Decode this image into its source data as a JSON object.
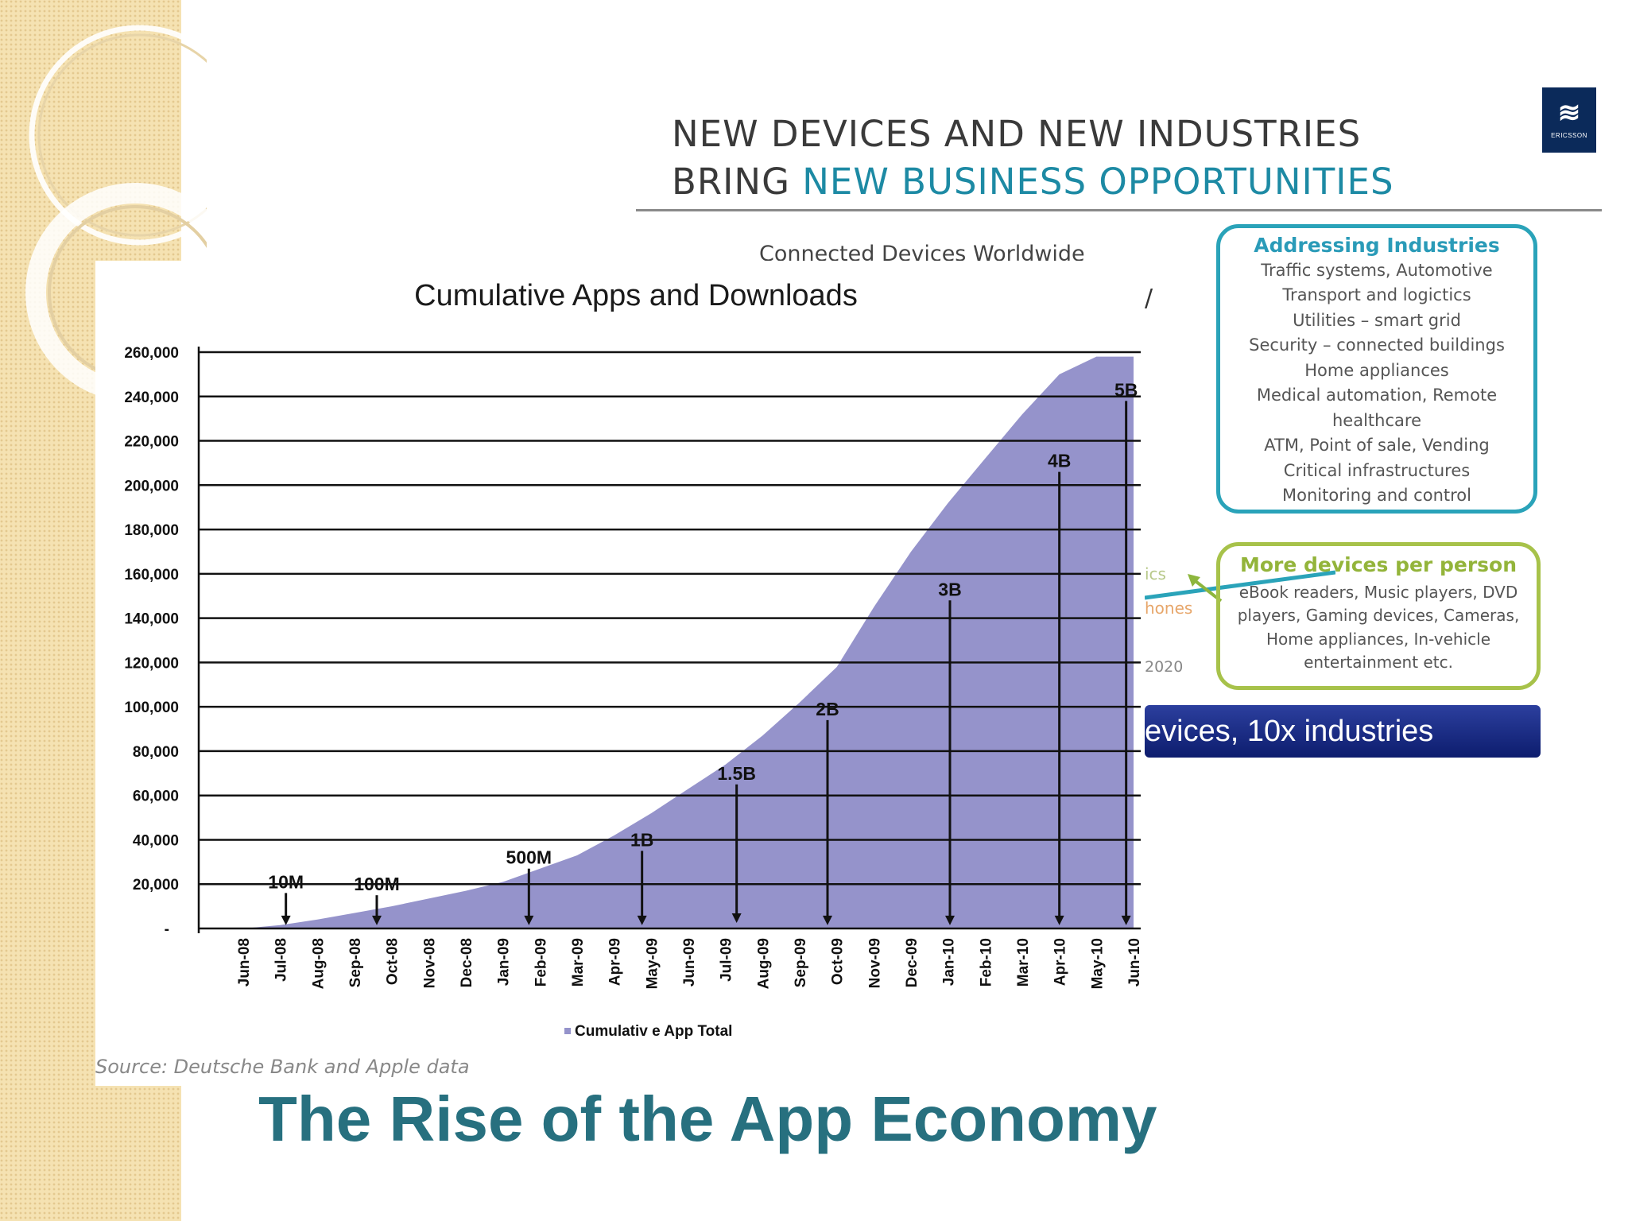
{
  "slide": {
    "title": "The Rise of the App Economy",
    "source": "Source: Deutsche Bank and Apple data"
  },
  "ericsson_slide": {
    "heading_line1": "NEW DEVICES AND NEW INDUSTRIES",
    "heading_line2_prefix": "BRING ",
    "heading_line2_highlight": "NEW BUSINESS OPPORTUNITIES",
    "subtitle": "Connected Devices Worldwide",
    "logo_text": "ERICSSON",
    "industries_box": {
      "title": "Addressing Industries",
      "lines": [
        "Traffic systems, Automotive",
        "Transport and logictics",
        "Utilities – smart grid",
        "Security – connected buildings",
        "Home appliances",
        "Medical automation, Remote",
        "healthcare",
        "ATM, Point of sale, Vending",
        "Critical infrastructures",
        "Monitoring and control"
      ]
    },
    "persons_box": {
      "title": "More devices per person",
      "lines": [
        "eBook readers, Music players, DVD",
        "players, Gaming devices, Cameras,",
        "Home appliances, In-vehicle",
        "entertainment etc."
      ]
    },
    "banner": "evices, 10x industries",
    "fragments": {
      "ics": "ics",
      "hones": "hones",
      "year": "2020",
      "slash": "/"
    }
  },
  "chart_data": {
    "type": "area",
    "title": "Cumulative Apps and Downloads",
    "xlabel": "",
    "ylabel": "",
    "legend": {
      "label": "Cumulativ e App Total",
      "position": "bottom"
    },
    "grid": true,
    "ylim": [
      0,
      260000
    ],
    "ytick_labels": [
      "-",
      "20,000",
      "40,000",
      "60,000",
      "80,000",
      "100,000",
      "120,000",
      "140,000",
      "160,000",
      "180,000",
      "200,000",
      "220,000",
      "240,000",
      "260,000"
    ],
    "categories": [
      "Jun-08",
      "Jul-08",
      "Aug-08",
      "Sep-08",
      "Oct-08",
      "Nov-08",
      "Dec-08",
      "Jan-09",
      "Feb-09",
      "Mar-09",
      "Apr-09",
      "May-09",
      "Jun-09",
      "Jul-09",
      "Aug-09",
      "Sep-09",
      "Oct-09",
      "Nov-09",
      "Dec-09",
      "Jan-10",
      "Feb-10",
      "Mar-10",
      "Apr-10",
      "May-10",
      "Jun-10"
    ],
    "values": [
      0,
      1500,
      4000,
      7000,
      10000,
      13500,
      17000,
      21000,
      27000,
      33000,
      42000,
      52000,
      63000,
      74000,
      87000,
      102000,
      118000,
      145000,
      170000,
      192000,
      212000,
      232000,
      250000,
      258000,
      258000
    ],
    "series_color": "#9593cb",
    "annotations": [
      {
        "label": "10M",
        "x": 1.15,
        "top": 16000,
        "bottom": 1500
      },
      {
        "label": "100M",
        "x": 3.6,
        "top": 15000,
        "bottom": 1500
      },
      {
        "label": "500M",
        "x": 7.7,
        "top": 27000,
        "bottom": 1500
      },
      {
        "label": "1B",
        "x": 10.75,
        "top": 35000,
        "bottom": 1500
      },
      {
        "label": "1.5B",
        "x": 13.3,
        "top": 65000,
        "bottom": 2500
      },
      {
        "label": "2B",
        "x": 15.75,
        "top": 94000,
        "bottom": 1500
      },
      {
        "label": "3B",
        "x": 19.05,
        "top": 148000,
        "bottom": 1500
      },
      {
        "label": "4B",
        "x": 22.0,
        "top": 206000,
        "bottom": 1500
      },
      {
        "label": "5B",
        "x": 23.8,
        "top": 238000,
        "bottom": 1500
      }
    ]
  }
}
